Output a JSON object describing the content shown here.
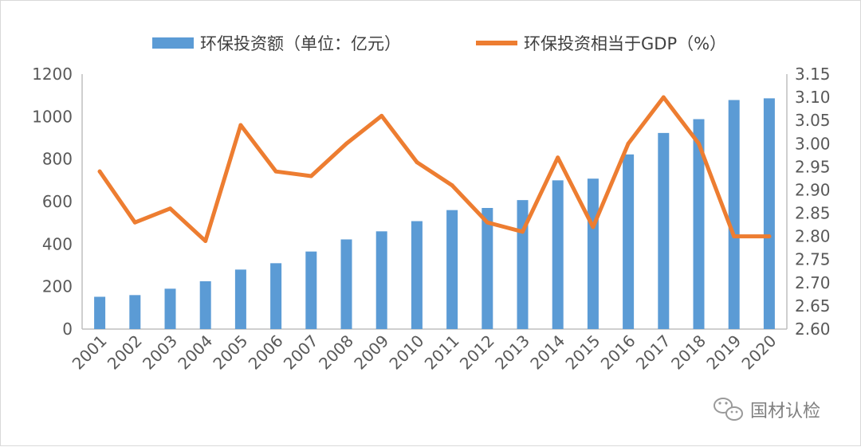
{
  "chart_data": {
    "type": "bar",
    "categories": [
      "2001",
      "2002",
      "2003",
      "2004",
      "2005",
      "2006",
      "2007",
      "2008",
      "2009",
      "2010",
      "2011",
      "2012",
      "2013",
      "2014",
      "2015",
      "2016",
      "2017",
      "2018",
      "2019",
      "2020"
    ],
    "series": [
      {
        "name": "环保投资额（单位：亿元）",
        "type": "bar",
        "axis": "left",
        "color": "#5b9bd5",
        "values": [
          152,
          160,
          190,
          225,
          280,
          310,
          365,
          422,
          460,
          508,
          560,
          570,
          607,
          700,
          708,
          822,
          923,
          988,
          1078,
          1086
        ]
      },
      {
        "name": "环保投资相当于GDP（%）",
        "type": "line",
        "axis": "right",
        "color": "#ed7d31",
        "values": [
          2.94,
          2.83,
          2.86,
          2.79,
          3.04,
          2.94,
          2.93,
          3.0,
          3.06,
          2.96,
          2.91,
          2.83,
          2.81,
          2.97,
          2.82,
          3.0,
          3.1,
          3.0,
          2.8,
          2.8
        ]
      }
    ],
    "y_left": {
      "min": 0,
      "max": 1200,
      "ticks": [
        "0",
        "200",
        "400",
        "600",
        "800",
        "1000",
        "1200"
      ]
    },
    "y_right": {
      "min": 2.6,
      "max": 3.15,
      "ticks": [
        "2.60",
        "2.65",
        "2.70",
        "2.75",
        "2.80",
        "2.85",
        "2.90",
        "2.95",
        "3.00",
        "3.05",
        "3.10",
        "3.15"
      ]
    },
    "grid": false,
    "legend_position": "top"
  },
  "watermark": {
    "text": "国材认检",
    "icon": "wechat-icon"
  }
}
